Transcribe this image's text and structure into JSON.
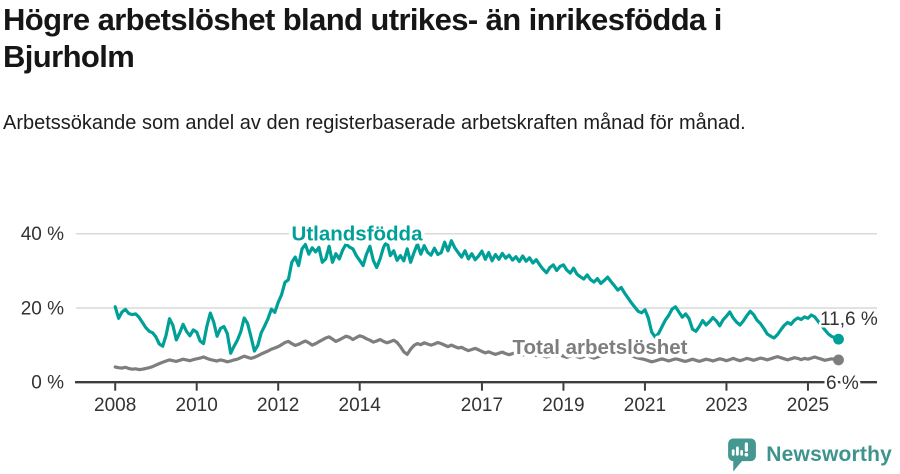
{
  "header": {
    "title": "Högre arbetslöshet bland utrikes- än inrikesfödda i Bjurholm",
    "subtitle": "Arbetssökande som andel av den registerbaserade arbetskraften månad för månad."
  },
  "footer": {
    "brand": "Newsworthy"
  },
  "colors": {
    "teal_line": "#00a099",
    "gray_line": "#7e7e7e",
    "axis": "#3d3d3d",
    "grid": "#d9d9d9",
    "tick_text": "#333333",
    "end_label_text": "#333333",
    "logo_teal": "#459892",
    "background": "#ffffff"
  },
  "chart_data": {
    "type": "line",
    "title": "Högre arbetslöshet bland utrikes- än inrikesfödda i Bjurholm",
    "xlabel": "",
    "ylabel": "Arbetssökande som andel av den registerbaserade arbetskraften",
    "x_unit": "month",
    "x_start": "2008-01",
    "x_end": "2025-10",
    "ylim": [
      0,
      44
    ],
    "grid": "horizontal",
    "legend_position": "inline-labels",
    "y_ticks": [
      {
        "value": 0,
        "label": "0 %"
      },
      {
        "value": 20,
        "label": "20 %"
      },
      {
        "value": 40,
        "label": "40 %"
      }
    ],
    "x_ticks": [
      {
        "year": 2008,
        "label": "2008"
      },
      {
        "year": 2010,
        "label": "2010"
      },
      {
        "year": 2012,
        "label": "2012"
      },
      {
        "year": 2014,
        "label": "2014"
      },
      {
        "year": 2017,
        "label": "2017"
      },
      {
        "year": 2019,
        "label": "2019"
      },
      {
        "year": 2021,
        "label": "2021"
      },
      {
        "year": 2023,
        "label": "2023"
      },
      {
        "year": 2025,
        "label": "2025"
      }
    ],
    "series": [
      {
        "name": "Utlandsfödda",
        "color": "#00a099",
        "end_label": "11,6 %",
        "end_value": 11.6,
        "values": [
          20.3,
          17.2,
          18.9,
          19.6,
          18.5,
          18.2,
          18.4,
          17.5,
          16.1,
          14.7,
          13.7,
          13.3,
          12.2,
          10.3,
          9.7,
          12.7,
          17.1,
          15.3,
          11.4,
          13.3,
          15.6,
          13.7,
          12.5,
          14.1,
          13.5,
          11.1,
          10.4,
          15.1,
          18.6,
          16.2,
          12.4,
          14.5,
          15.0,
          13.1,
          7.8,
          9.7,
          11.3,
          13.6,
          17.3,
          15.8,
          12.2,
          8.4,
          9.9,
          13.3,
          15.1,
          17.1,
          19.7,
          18.8,
          21.5,
          23.6,
          26.9,
          27.6,
          32.3,
          33.7,
          31.4,
          35.9,
          37.1,
          34.5,
          36.2,
          35.1,
          36.3,
          32.3,
          33.2,
          36.6,
          32.3,
          34.6,
          33.2,
          35.6,
          37.2,
          36.4,
          35.9,
          34.1,
          32.8,
          31.4,
          34.5,
          36.6,
          32.8,
          30.9,
          33.2,
          36.3,
          38.0,
          34.1,
          35.4,
          32.8,
          34.1,
          32.7,
          35.9,
          32.3,
          34.9,
          37.2,
          34.5,
          36.8,
          35.0,
          34.2,
          36.1,
          34.4,
          34.9,
          37.7,
          35.4,
          38.1,
          36.2,
          34.9,
          33.7,
          35.4,
          33.2,
          34.6,
          33.0,
          34.0,
          35.3,
          33.1,
          34.9,
          32.7,
          34.4,
          33.1,
          34.7,
          33.4,
          34.2,
          32.9,
          33.8,
          32.5,
          34.0,
          32.6,
          33.5,
          32.1,
          33.0,
          31.6,
          30.4,
          29.5,
          30.9,
          31.6,
          30.1,
          31.2,
          31.6,
          30.2,
          29.4,
          30.7,
          29.1,
          28.4,
          27.8,
          28.9,
          27.6,
          27.0,
          27.9,
          26.6,
          27.4,
          28.3,
          27.1,
          26.0,
          24.8,
          25.5,
          24.0,
          22.7,
          21.4,
          20.2,
          19.1,
          18.7,
          19.5,
          17.3,
          13.5,
          12.2,
          13.1,
          14.9,
          16.7,
          18.0,
          19.7,
          20.3,
          18.9,
          17.5,
          18.4,
          17.1,
          14.3,
          13.7,
          15.0,
          16.6,
          15.4,
          16.3,
          17.4,
          16.5,
          15.2,
          16.8,
          17.8,
          18.9,
          17.3,
          16.2,
          15.4,
          16.5,
          17.9,
          19.1,
          18.2,
          16.7,
          15.8,
          14.5,
          13.0,
          12.4,
          11.9,
          12.8,
          14.1,
          15.3,
          16.1,
          15.6,
          16.7,
          17.3,
          16.9,
          17.6,
          17.2,
          18.1,
          17.6,
          16.4,
          15.3,
          14.1,
          13.0,
          12.3,
          12.0,
          11.6
        ]
      },
      {
        "name": "Total arbetslöshet",
        "color": "#7e7e7e",
        "end_label": "6 %",
        "end_value": 6.0,
        "values": [
          4.1,
          3.9,
          3.8,
          4.0,
          3.7,
          3.5,
          3.6,
          3.4,
          3.5,
          3.7,
          3.9,
          4.2,
          4.6,
          5.0,
          5.4,
          5.7,
          6.0,
          5.8,
          5.6,
          5.9,
          6.2,
          6.0,
          5.8,
          6.1,
          6.3,
          6.5,
          6.8,
          6.4,
          6.1,
          5.9,
          5.7,
          6.0,
          5.8,
          5.5,
          5.7,
          6.0,
          6.2,
          6.6,
          7.0,
          6.7,
          6.4,
          6.7,
          7.1,
          7.6,
          8.0,
          8.4,
          8.9,
          9.2,
          9.6,
          10.1,
          10.7,
          11.0,
          10.4,
          9.9,
          10.2,
          10.7,
          11.1,
          10.6,
          10.0,
          10.4,
          10.9,
          11.4,
          11.9,
          12.2,
          11.6,
          11.0,
          11.4,
          11.9,
          12.4,
          12.1,
          11.5,
          12.0,
          12.5,
          12.2,
          11.7,
          11.3,
          10.8,
          11.1,
          11.5,
          11.0,
          10.6,
          10.9,
          11.3,
          10.7,
          9.6,
          8.2,
          7.5,
          8.9,
          9.9,
          10.4,
          10.1,
          10.6,
          10.3,
          10.0,
          10.3,
          10.7,
          10.4,
          10.0,
          9.6,
          10.0,
          9.6,
          9.2,
          9.4,
          8.9,
          8.5,
          8.8,
          9.1,
          8.7,
          8.3,
          7.9,
          8.2,
          7.8,
          7.5,
          7.8,
          8.1,
          7.7,
          7.4,
          7.7,
          8.0,
          7.6,
          7.3,
          7.6,
          7.9,
          7.5,
          7.2,
          7.5,
          7.1,
          6.8,
          7.1,
          7.4,
          7.0,
          7.3,
          7.0,
          6.7,
          7.0,
          7.3,
          6.9,
          6.6,
          6.9,
          7.2,
          6.8,
          6.5,
          6.8,
          7.1,
          7.4,
          7.8,
          8.2,
          8.6,
          8.3,
          8.0,
          7.7,
          7.4,
          7.1,
          6.8,
          6.5,
          6.3,
          6.1,
          5.8,
          5.5,
          5.7,
          6.0,
          6.3,
          6.0,
          5.7,
          6.0,
          6.3,
          6.1,
          5.8,
          5.6,
          5.9,
          6.2,
          5.9,
          5.6,
          5.9,
          6.2,
          6.0,
          5.7,
          6.0,
          6.3,
          6.1,
          5.8,
          6.1,
          6.4,
          6.1,
          5.8,
          6.1,
          6.4,
          6.2,
          5.9,
          6.2,
          6.5,
          6.3,
          6.0,
          6.3,
          6.6,
          6.9,
          6.6,
          6.3,
          6.0,
          6.3,
          6.6,
          6.4,
          6.1,
          6.4,
          6.2,
          6.5,
          6.8,
          6.5,
          6.2,
          5.9,
          6.1,
          6.3,
          6.1,
          6.0
        ]
      }
    ]
  }
}
